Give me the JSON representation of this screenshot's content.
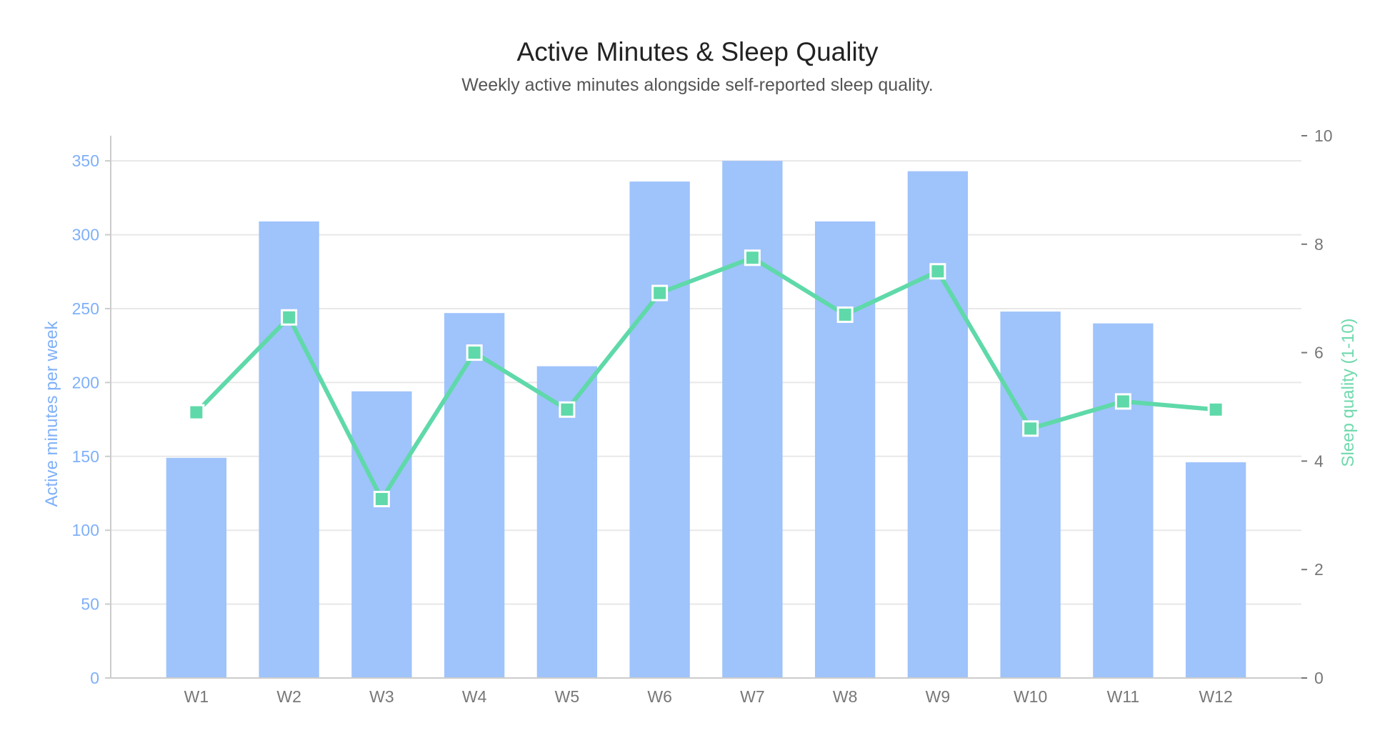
{
  "colors": {
    "bars": "#9fc3fb",
    "line": "#5fd9a9",
    "left_axis_text": "#7fb0f8",
    "right_axis_title": "#6fd9ae",
    "right_axis_ticks": "#777777",
    "x_ticks": "#777777",
    "grid": "#e8e8e8",
    "axis": "#cccccc"
  },
  "chart_data": {
    "type": "bar",
    "title": "Active Minutes & Sleep Quality",
    "subtitle": "Weekly active minutes alongside self-reported sleep quality.",
    "categories": [
      "W1",
      "W2",
      "W3",
      "W4",
      "W5",
      "W6",
      "W7",
      "W8",
      "W9",
      "W10",
      "W11",
      "W12"
    ],
    "series": [
      {
        "type": "bar",
        "axis": "left",
        "values": [
          149,
          309,
          194,
          247,
          211,
          336,
          350,
          309,
          343,
          248,
          240,
          146
        ]
      },
      {
        "type": "line",
        "axis": "right",
        "marker": "square",
        "values": [
          4.9,
          6.65,
          3.3,
          6.0,
          4.95,
          7.1,
          7.75,
          6.7,
          7.5,
          4.6,
          5.1,
          4.95
        ]
      }
    ],
    "ylabel": "Active minutes per week",
    "y2label": "Sleep quality (1-10)",
    "ylim": [
      0,
      367
    ],
    "y2lim": [
      0,
      10
    ],
    "yticks": [
      0,
      50,
      100,
      150,
      200,
      250,
      300,
      350
    ],
    "y2ticks": [
      0,
      2,
      4,
      6,
      8,
      10
    ],
    "grid": true,
    "legend": "none"
  }
}
